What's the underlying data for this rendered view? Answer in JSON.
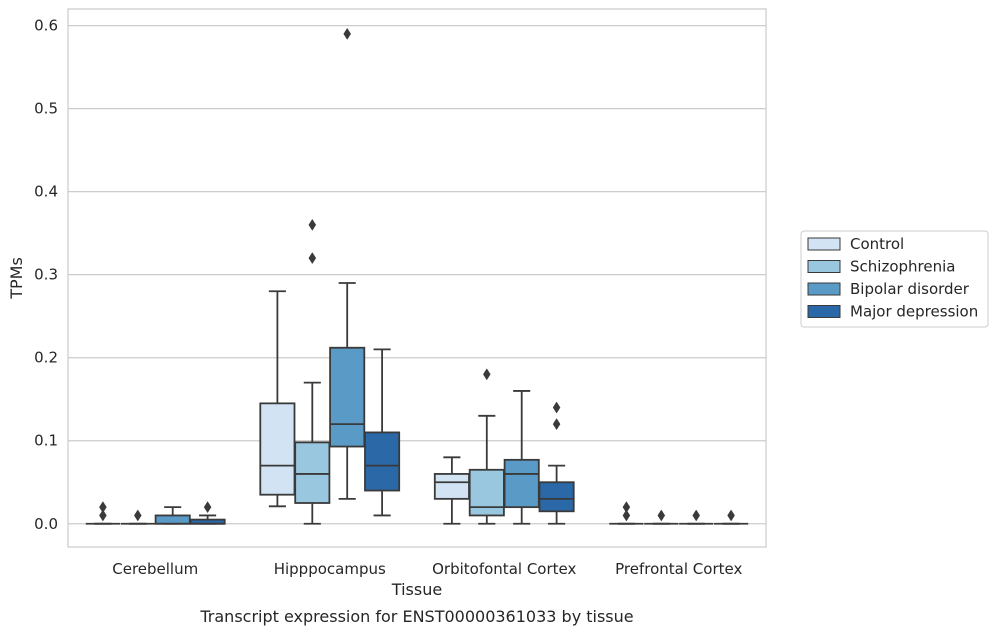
{
  "caption": "Transcript expression for ENST00000361033 by tissue",
  "chart_data": {
    "type": "box",
    "xlabel": "Tissue",
    "ylabel": "TPMs",
    "ylim": [
      -0.028,
      0.62
    ],
    "yticks": [
      "0.0",
      "0.1",
      "0.2",
      "0.3",
      "0.4",
      "0.5",
      "0.6"
    ],
    "ytick_values": [
      0.0,
      0.1,
      0.2,
      0.3,
      0.4,
      0.5,
      0.6
    ],
    "categories": [
      "Cerebellum",
      "Hipppocampus",
      "Orbitofontal Cortex",
      "Prefrontal Cortex"
    ],
    "grid": "horizontal",
    "legend_position": "outside-right",
    "series": [
      {
        "name": "Control",
        "color": "#d2e3f3",
        "boxes": [
          {
            "q1": 0.0,
            "median": 0.0,
            "q3": 0.0,
            "whisker_low": 0.0,
            "whisker_high": 0.0,
            "outliers": [
              0.01,
              0.02
            ]
          },
          {
            "q1": 0.035,
            "median": 0.07,
            "q3": 0.145,
            "whisker_low": 0.021,
            "whisker_high": 0.28,
            "outliers": []
          },
          {
            "q1": 0.03,
            "median": 0.05,
            "q3": 0.06,
            "whisker_low": 0.0,
            "whisker_high": 0.08,
            "outliers": []
          },
          {
            "q1": 0.0,
            "median": 0.0,
            "q3": 0.0,
            "whisker_low": 0.0,
            "whisker_high": 0.0,
            "outliers": [
              0.01,
              0.02
            ]
          }
        ]
      },
      {
        "name": "Schizophrenia",
        "color": "#9ac7e0",
        "boxes": [
          {
            "q1": 0.0,
            "median": 0.0,
            "q3": 0.0,
            "whisker_low": 0.0,
            "whisker_high": 0.0,
            "outliers": [
              0.01
            ]
          },
          {
            "q1": 0.025,
            "median": 0.06,
            "q3": 0.098,
            "whisker_low": 0.0,
            "whisker_high": 0.17,
            "outliers": [
              0.32,
              0.36
            ]
          },
          {
            "q1": 0.01,
            "median": 0.02,
            "q3": 0.065,
            "whisker_low": 0.0,
            "whisker_high": 0.13,
            "outliers": [
              0.18
            ]
          },
          {
            "q1": 0.0,
            "median": 0.0,
            "q3": 0.0,
            "whisker_low": 0.0,
            "whisker_high": 0.0,
            "outliers": [
              0.01
            ]
          }
        ]
      },
      {
        "name": "Bipolar disorder",
        "color": "#5a9ac7",
        "boxes": [
          {
            "q1": 0.0,
            "median": 0.0,
            "q3": 0.01,
            "whisker_low": 0.0,
            "whisker_high": 0.02,
            "outliers": []
          },
          {
            "q1": 0.093,
            "median": 0.12,
            "q3": 0.212,
            "whisker_low": 0.03,
            "whisker_high": 0.29,
            "outliers": [
              0.59
            ]
          },
          {
            "q1": 0.02,
            "median": 0.06,
            "q3": 0.077,
            "whisker_low": 0.0,
            "whisker_high": 0.16,
            "outliers": []
          },
          {
            "q1": 0.0,
            "median": 0.0,
            "q3": 0.0,
            "whisker_low": 0.0,
            "whisker_high": 0.0,
            "outliers": [
              0.01
            ]
          }
        ]
      },
      {
        "name": "Major depression",
        "color": "#2a68a8",
        "boxes": [
          {
            "q1": 0.0,
            "median": 0.0,
            "q3": 0.005,
            "whisker_low": 0.0,
            "whisker_high": 0.01,
            "outliers": [
              0.02
            ]
          },
          {
            "q1": 0.04,
            "median": 0.07,
            "q3": 0.11,
            "whisker_low": 0.01,
            "whisker_high": 0.21,
            "outliers": []
          },
          {
            "q1": 0.015,
            "median": 0.03,
            "q3": 0.05,
            "whisker_low": 0.0,
            "whisker_high": 0.07,
            "outliers": [
              0.12,
              0.14
            ]
          },
          {
            "q1": 0.0,
            "median": 0.0,
            "q3": 0.0,
            "whisker_low": 0.0,
            "whisker_high": 0.0,
            "outliers": [
              0.01
            ]
          }
        ]
      }
    ]
  }
}
